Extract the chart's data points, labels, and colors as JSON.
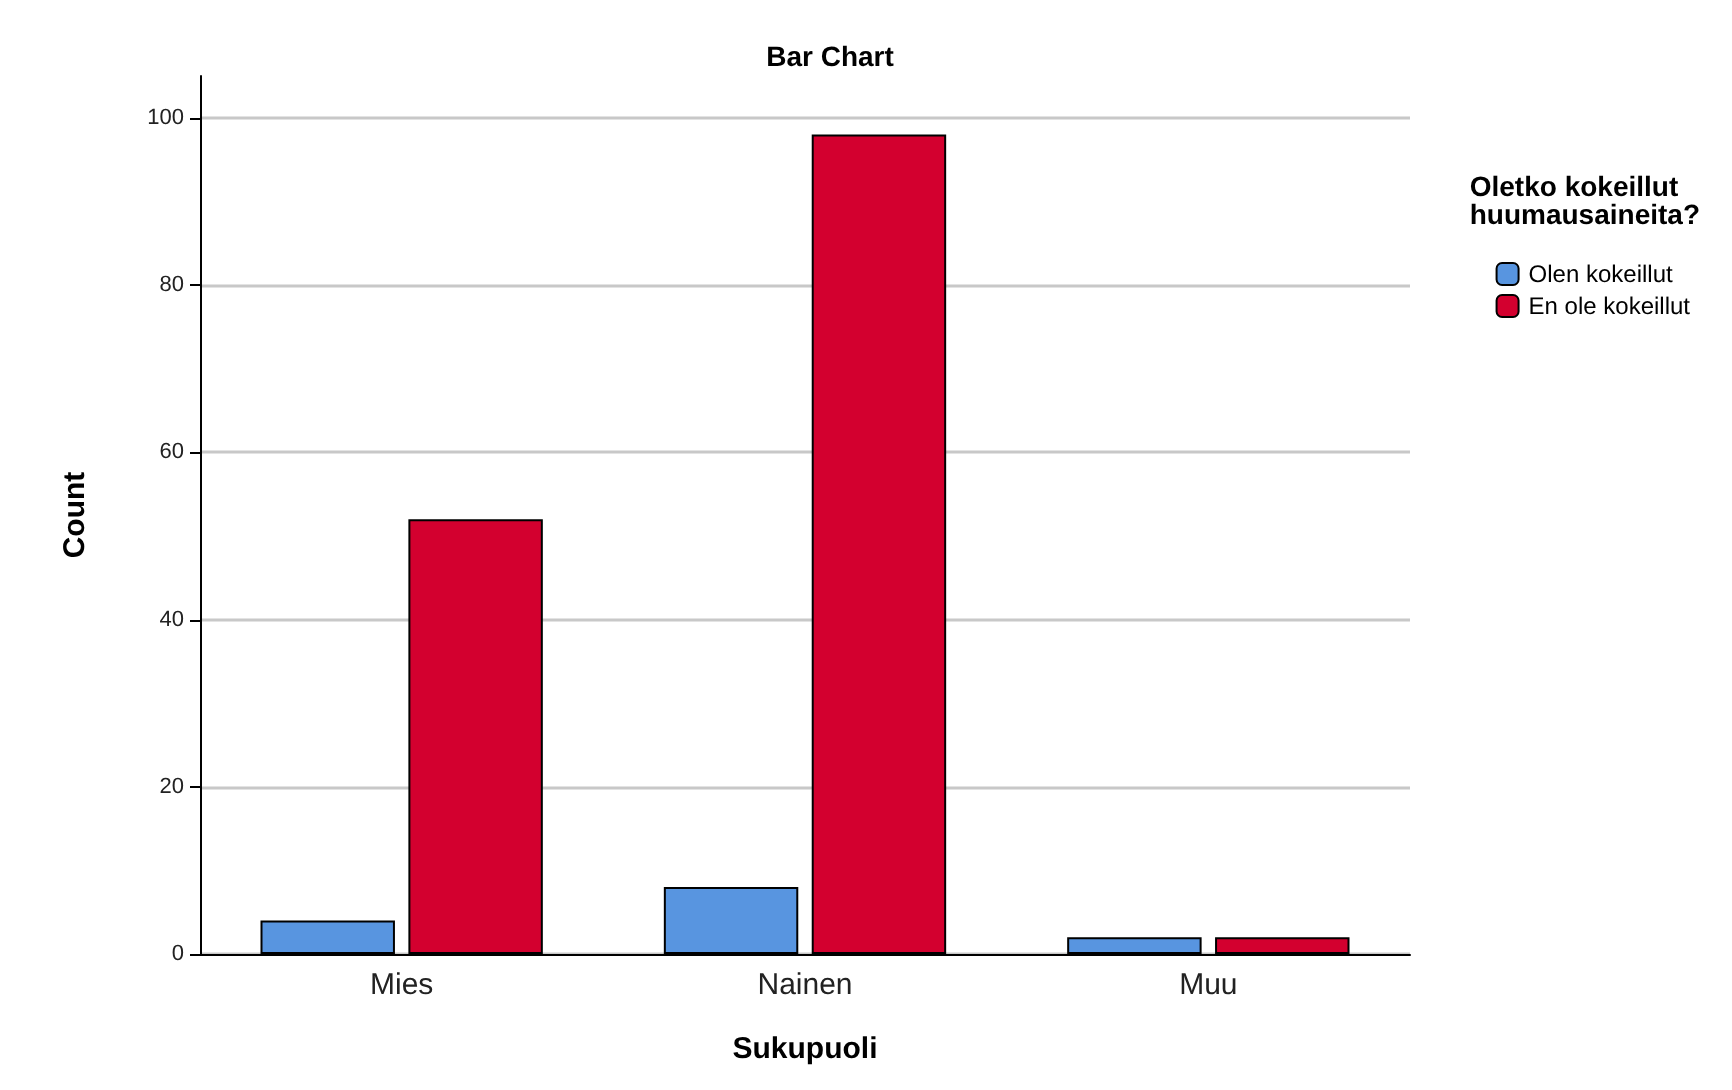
{
  "chart_data": {
    "type": "bar",
    "title": "Bar Chart",
    "xlabel": "Sukupuoli",
    "ylabel": "Count",
    "legend_title": "Oletko kokeillut\nhuumausaineita?",
    "categories": [
      "Mies",
      "Nainen",
      "Muu"
    ],
    "series": [
      {
        "name": "Olen kokeillut",
        "color": "#5895e0",
        "values": [
          4,
          8,
          2
        ]
      },
      {
        "name": "En ole kokeillut",
        "color": "#d3002f",
        "values": [
          52,
          98,
          2
        ]
      }
    ],
    "ylim": [
      0,
      105
    ],
    "yticks": [
      0,
      20,
      40,
      60,
      80,
      100
    ],
    "grid": "y",
    "legend": "top right"
  }
}
